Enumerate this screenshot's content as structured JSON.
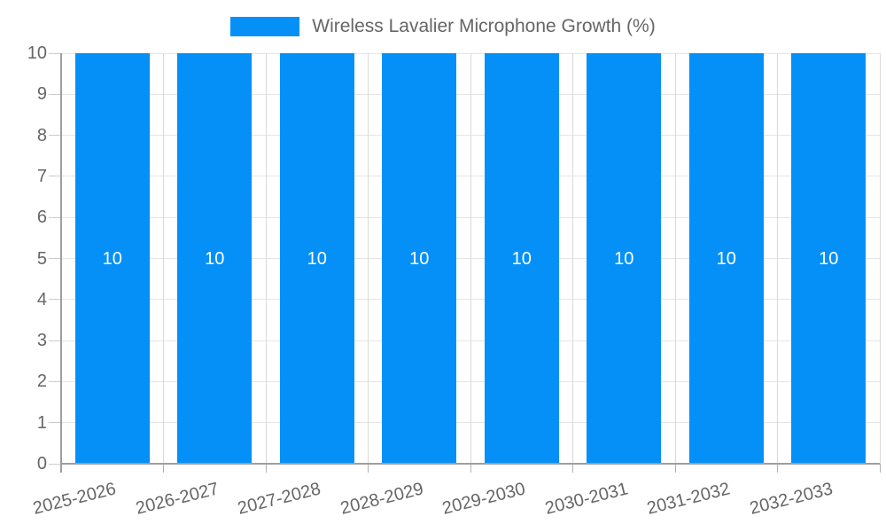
{
  "chart_data": {
    "type": "bar",
    "title": "Wireless Lavalier Microphone Growth (%)",
    "categories": [
      "2025-2026",
      "2026-2027",
      "2027-2028",
      "2028-2029",
      "2029-2030",
      "2030-2031",
      "2031-2032",
      "2032-2033"
    ],
    "values": [
      10,
      10,
      10,
      10,
      10,
      10,
      10,
      10
    ],
    "bar_value_labels": [
      "10",
      "10",
      "10",
      "10",
      "10",
      "10",
      "10",
      "10"
    ],
    "xlabel": "",
    "ylabel": "",
    "ylim": [
      0,
      10
    ],
    "ytick_step": 1,
    "yticks": [
      "0",
      "1",
      "2",
      "3",
      "4",
      "5",
      "6",
      "7",
      "8",
      "9",
      "10"
    ],
    "grid": true,
    "legend_position": "top",
    "legend_label": "Wireless Lavalier Microphone Growth (%)",
    "colors": {
      "bar": "#0590F8",
      "grid_h": "#e5e5e5",
      "grid_v": "#d9d9d9",
      "axis": "#9e9e9e",
      "tick_label": "#666666",
      "bar_label": "#ffffff",
      "background": "#ffffff"
    }
  }
}
